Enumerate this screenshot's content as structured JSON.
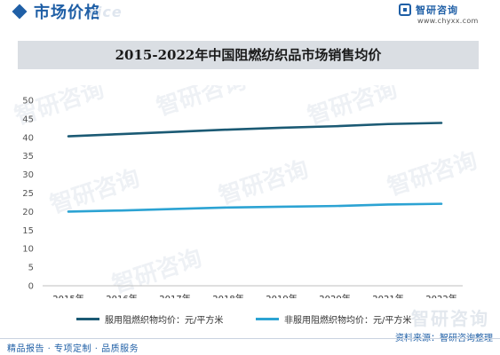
{
  "header": {
    "section_title": "市场价格",
    "watermark_text": "rice",
    "brand": {
      "name": "智研咨询",
      "url": "www.chyxx.com"
    }
  },
  "watermarks": [
    "智研咨询",
    "智研咨询",
    "智研咨询",
    "智研咨询",
    "智研咨询",
    "智研咨询",
    "智研咨询"
  ],
  "chart_data": {
    "type": "line",
    "title": "2015-2022年中国阻燃纺织品市场销售均价",
    "categories": [
      "2015年",
      "2016年",
      "2017年",
      "2018年",
      "2019年",
      "2020年",
      "2021年",
      "2022年"
    ],
    "ylim": [
      0,
      50
    ],
    "yticks": [
      0,
      5,
      10,
      15,
      20,
      25,
      30,
      35,
      40,
      45,
      50
    ],
    "grid": false,
    "legend_position": "bottom",
    "series": [
      {
        "name": "服用阻燃织物均价：元/平方米",
        "color": "#1b5a74",
        "values": [
          40.3,
          40.9,
          41.5,
          42.1,
          42.6,
          43.0,
          43.6,
          43.9
        ]
      },
      {
        "name": "非服用阻燃织物均价：元/平方米",
        "color": "#2ca3d3",
        "values": [
          20.0,
          20.3,
          20.7,
          21.1,
          21.3,
          21.5,
          21.9,
          22.1
        ]
      }
    ]
  },
  "footer": {
    "left_text": "精品报告 · 专项定制 · 品质服务",
    "source_label": "资料来源：",
    "source_value": "智研咨询整理",
    "watermark_big": "智研咨询"
  }
}
